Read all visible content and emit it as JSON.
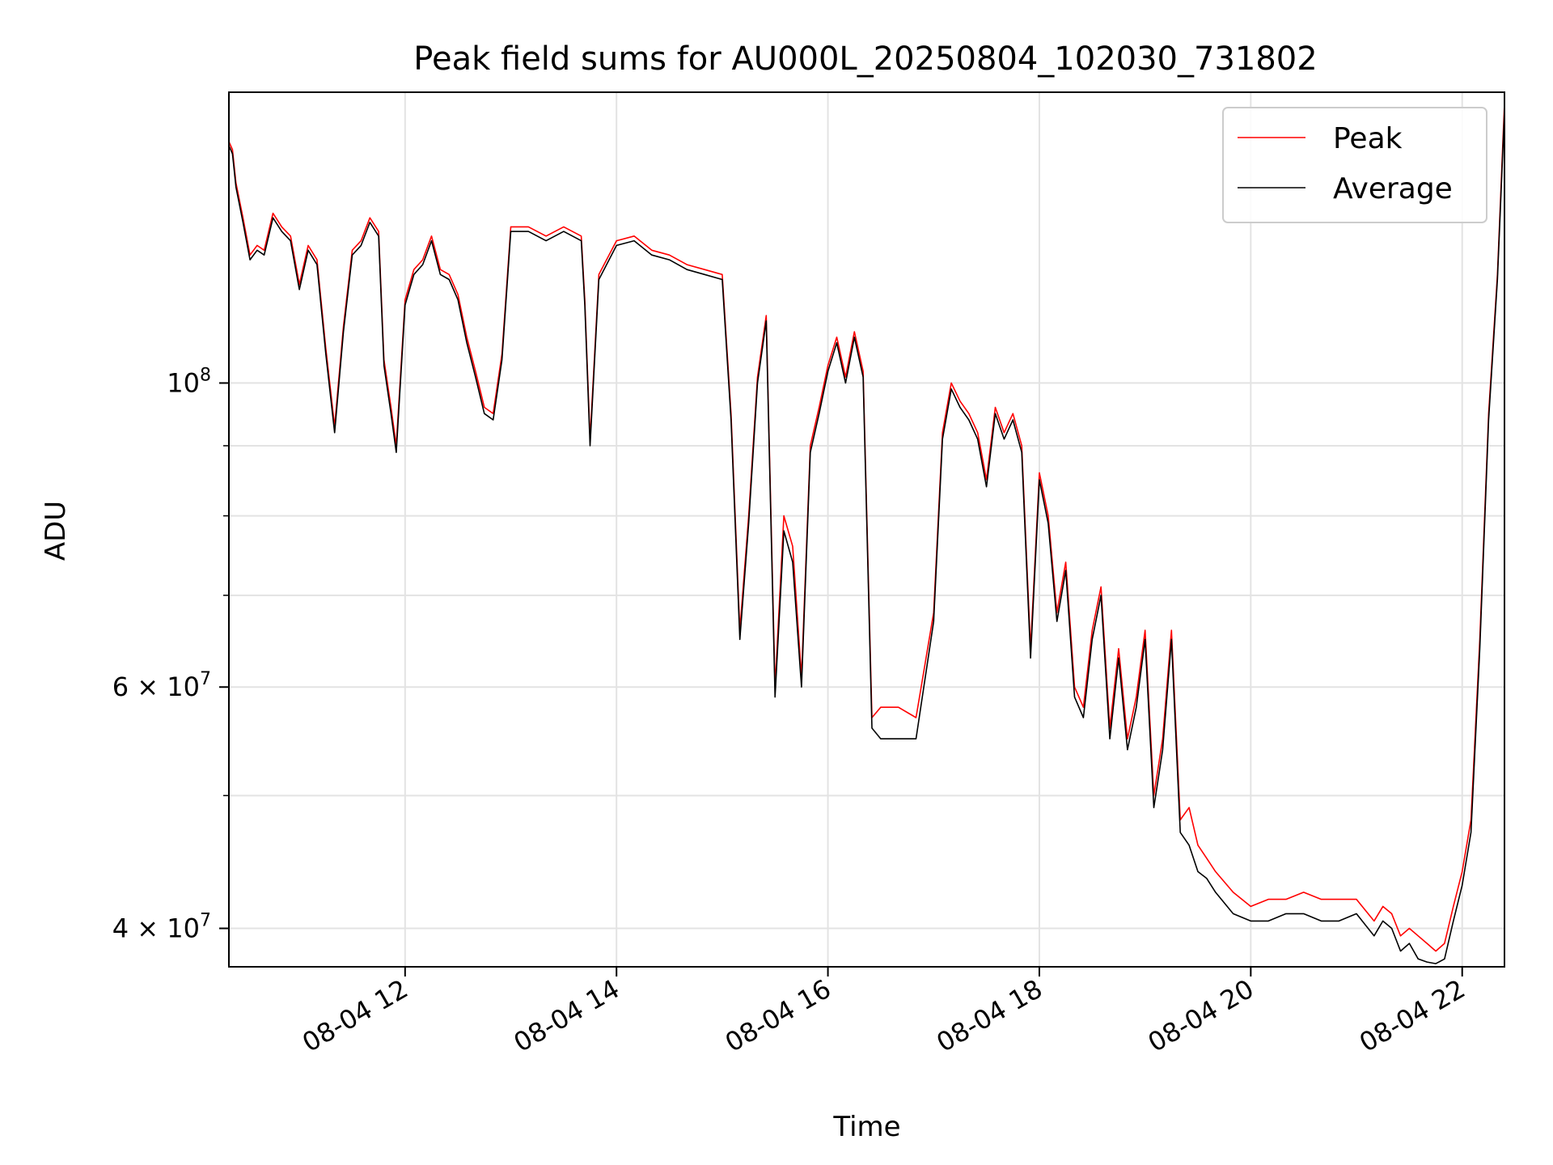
{
  "chart_data": {
    "type": "line",
    "title": "Peak field sums for AU000L_20250804_102030_731802",
    "xlabel": "Time",
    "ylabel": "ADU",
    "y_scale": "log",
    "ylim": [
      37500000,
      163000000
    ],
    "xlim": [
      "2025-08-04 10:20",
      "2025-08-04 22:24"
    ],
    "grid": true,
    "legend": "top-right",
    "x_ticks": [
      {
        "value": "2025-08-04 12:00",
        "label": "08-04 12"
      },
      {
        "value": "2025-08-04 14:00",
        "label": "08-04 14"
      },
      {
        "value": "2025-08-04 16:00",
        "label": "08-04 16"
      },
      {
        "value": "2025-08-04 18:00",
        "label": "08-04 18"
      },
      {
        "value": "2025-08-04 20:00",
        "label": "08-04 20"
      },
      {
        "value": "2025-08-04 22:00",
        "label": "08-04 22"
      }
    ],
    "y_ticks": [
      {
        "value": 100000000,
        "label_base": "10",
        "label_exp": "8",
        "mult": ""
      },
      {
        "value": 60000000,
        "label_base": "10",
        "label_exp": "7",
        "mult": "6 × "
      },
      {
        "value": 40000000,
        "label_base": "10",
        "label_exp": "7",
        "mult": "4 × "
      }
    ],
    "y_minor_gridlines": [
      50000000,
      70000000,
      80000000,
      90000000
    ],
    "series": [
      {
        "name": "Peak",
        "color": "#ff0000",
        "x": [
          "2025-08-04 10:20",
          "2025-08-04 10:22",
          "2025-08-04 10:24",
          "2025-08-04 10:28",
          "2025-08-04 10:32",
          "2025-08-04 10:36",
          "2025-08-04 10:40",
          "2025-08-04 10:45",
          "2025-08-04 10:50",
          "2025-08-04 10:55",
          "2025-08-04 11:00",
          "2025-08-04 11:05",
          "2025-08-04 11:10",
          "2025-08-04 11:15",
          "2025-08-04 11:20",
          "2025-08-04 11:25",
          "2025-08-04 11:30",
          "2025-08-04 11:35",
          "2025-08-04 11:40",
          "2025-08-04 11:45",
          "2025-08-04 11:48",
          "2025-08-04 11:52",
          "2025-08-04 11:55",
          "2025-08-04 12:00",
          "2025-08-04 12:05",
          "2025-08-04 12:10",
          "2025-08-04 12:15",
          "2025-08-04 12:20",
          "2025-08-04 12:25",
          "2025-08-04 12:30",
          "2025-08-04 12:35",
          "2025-08-04 12:40",
          "2025-08-04 12:45",
          "2025-08-04 12:50",
          "2025-08-04 12:55",
          "2025-08-04 13:00",
          "2025-08-04 13:10",
          "2025-08-04 13:20",
          "2025-08-04 13:30",
          "2025-08-04 13:40",
          "2025-08-04 13:42",
          "2025-08-04 13:45",
          "2025-08-04 13:50",
          "2025-08-04 14:00",
          "2025-08-04 14:10",
          "2025-08-04 14:20",
          "2025-08-04 14:30",
          "2025-08-04 14:40",
          "2025-08-04 14:50",
          "2025-08-04 15:00",
          "2025-08-04 15:05",
          "2025-08-04 15:10",
          "2025-08-04 15:15",
          "2025-08-04 15:20",
          "2025-08-04 15:25",
          "2025-08-04 15:30",
          "2025-08-04 15:35",
          "2025-08-04 15:40",
          "2025-08-04 15:45",
          "2025-08-04 15:50",
          "2025-08-04 15:55",
          "2025-08-04 16:00",
          "2025-08-04 16:05",
          "2025-08-04 16:10",
          "2025-08-04 16:15",
          "2025-08-04 16:20",
          "2025-08-04 16:25",
          "2025-08-04 16:30",
          "2025-08-04 16:40",
          "2025-08-04 16:50",
          "2025-08-04 17:00",
          "2025-08-04 17:05",
          "2025-08-04 17:10",
          "2025-08-04 17:15",
          "2025-08-04 17:20",
          "2025-08-04 17:25",
          "2025-08-04 17:30",
          "2025-08-04 17:35",
          "2025-08-04 17:40",
          "2025-08-04 17:45",
          "2025-08-04 17:50",
          "2025-08-04 17:55",
          "2025-08-04 18:00",
          "2025-08-04 18:05",
          "2025-08-04 18:10",
          "2025-08-04 18:15",
          "2025-08-04 18:20",
          "2025-08-04 18:25",
          "2025-08-04 18:30",
          "2025-08-04 18:35",
          "2025-08-04 18:40",
          "2025-08-04 18:45",
          "2025-08-04 18:50",
          "2025-08-04 18:55",
          "2025-08-04 19:00",
          "2025-08-04 19:05",
          "2025-08-04 19:10",
          "2025-08-04 19:15",
          "2025-08-04 19:20",
          "2025-08-04 19:25",
          "2025-08-04 19:30",
          "2025-08-04 19:35",
          "2025-08-04 19:40",
          "2025-08-04 19:50",
          "2025-08-04 20:00",
          "2025-08-04 20:10",
          "2025-08-04 20:20",
          "2025-08-04 20:30",
          "2025-08-04 20:40",
          "2025-08-04 20:50",
          "2025-08-04 21:00",
          "2025-08-04 21:10",
          "2025-08-04 21:15",
          "2025-08-04 21:20",
          "2025-08-04 21:25",
          "2025-08-04 21:30",
          "2025-08-04 21:35",
          "2025-08-04 21:40",
          "2025-08-04 21:45",
          "2025-08-04 21:50",
          "2025-08-04 21:55",
          "2025-08-04 22:00",
          "2025-08-04 22:05",
          "2025-08-04 22:10",
          "2025-08-04 22:15",
          "2025-08-04 22:20",
          "2025-08-04 22:24"
        ],
        "values": [
          150000000,
          148000000,
          140000000,
          132000000,
          124000000,
          126000000,
          125000000,
          133000000,
          130000000,
          128000000,
          118000000,
          126000000,
          123000000,
          106000000,
          93000000,
          110000000,
          125000000,
          127000000,
          132000000,
          129000000,
          104000000,
          96000000,
          90000000,
          115000000,
          121000000,
          123000000,
          128000000,
          121000000,
          120000000,
          116000000,
          108000000,
          102000000,
          96000000,
          95000000,
          105000000,
          130000000,
          130000000,
          128000000,
          130000000,
          128000000,
          115000000,
          91000000,
          120000000,
          127000000,
          128000000,
          125000000,
          124000000,
          122000000,
          121000000,
          120000000,
          95000000,
          66000000,
          80000000,
          101000000,
          112000000,
          60000000,
          80000000,
          76000000,
          61000000,
          90000000,
          96000000,
          103000000,
          108000000,
          101000000,
          109000000,
          102000000,
          57000000,
          58000000,
          58000000,
          57000000,
          68000000,
          92000000,
          100000000,
          97000000,
          95000000,
          92000000,
          85000000,
          96000000,
          92000000,
          95000000,
          90000000,
          64000000,
          86000000,
          80000000,
          68000000,
          74000000,
          60000000,
          58000000,
          66000000,
          71000000,
          56000000,
          64000000,
          55000000,
          59000000,
          66000000,
          50000000,
          55000000,
          66000000,
          48000000,
          49000000,
          46000000,
          45000000,
          44000000,
          42500000,
          41500000,
          42000000,
          42000000,
          42500000,
          42000000,
          42000000,
          42000000,
          40500000,
          41500000,
          41000000,
          39500000,
          40000000,
          39500000,
          39000000,
          38500000,
          39000000,
          41500000,
          44000000,
          48000000,
          65000000,
          95000000,
          120000000,
          160000000
        ]
      },
      {
        "name": "Average",
        "color": "#000000",
        "x": [
          "2025-08-04 10:20",
          "2025-08-04 10:22",
          "2025-08-04 10:24",
          "2025-08-04 10:28",
          "2025-08-04 10:32",
          "2025-08-04 10:36",
          "2025-08-04 10:40",
          "2025-08-04 10:45",
          "2025-08-04 10:50",
          "2025-08-04 10:55",
          "2025-08-04 11:00",
          "2025-08-04 11:05",
          "2025-08-04 11:10",
          "2025-08-04 11:15",
          "2025-08-04 11:20",
          "2025-08-04 11:25",
          "2025-08-04 11:30",
          "2025-08-04 11:35",
          "2025-08-04 11:40",
          "2025-08-04 11:45",
          "2025-08-04 11:48",
          "2025-08-04 11:52",
          "2025-08-04 11:55",
          "2025-08-04 12:00",
          "2025-08-04 12:05",
          "2025-08-04 12:10",
          "2025-08-04 12:15",
          "2025-08-04 12:20",
          "2025-08-04 12:25",
          "2025-08-04 12:30",
          "2025-08-04 12:35",
          "2025-08-04 12:40",
          "2025-08-04 12:45",
          "2025-08-04 12:50",
          "2025-08-04 12:55",
          "2025-08-04 13:00",
          "2025-08-04 13:10",
          "2025-08-04 13:20",
          "2025-08-04 13:30",
          "2025-08-04 13:40",
          "2025-08-04 13:42",
          "2025-08-04 13:45",
          "2025-08-04 13:50",
          "2025-08-04 14:00",
          "2025-08-04 14:10",
          "2025-08-04 14:20",
          "2025-08-04 14:30",
          "2025-08-04 14:40",
          "2025-08-04 14:50",
          "2025-08-04 15:00",
          "2025-08-04 15:05",
          "2025-08-04 15:10",
          "2025-08-04 15:15",
          "2025-08-04 15:20",
          "2025-08-04 15:25",
          "2025-08-04 15:30",
          "2025-08-04 15:35",
          "2025-08-04 15:40",
          "2025-08-04 15:45",
          "2025-08-04 15:50",
          "2025-08-04 15:55",
          "2025-08-04 16:00",
          "2025-08-04 16:05",
          "2025-08-04 16:10",
          "2025-08-04 16:15",
          "2025-08-04 16:20",
          "2025-08-04 16:25",
          "2025-08-04 16:30",
          "2025-08-04 16:40",
          "2025-08-04 16:50",
          "2025-08-04 17:00",
          "2025-08-04 17:05",
          "2025-08-04 17:10",
          "2025-08-04 17:15",
          "2025-08-04 17:20",
          "2025-08-04 17:25",
          "2025-08-04 17:30",
          "2025-08-04 17:35",
          "2025-08-04 17:40",
          "2025-08-04 17:45",
          "2025-08-04 17:50",
          "2025-08-04 17:55",
          "2025-08-04 18:00",
          "2025-08-04 18:05",
          "2025-08-04 18:10",
          "2025-08-04 18:15",
          "2025-08-04 18:20",
          "2025-08-04 18:25",
          "2025-08-04 18:30",
          "2025-08-04 18:35",
          "2025-08-04 18:40",
          "2025-08-04 18:45",
          "2025-08-04 18:50",
          "2025-08-04 18:55",
          "2025-08-04 19:00",
          "2025-08-04 19:05",
          "2025-08-04 19:10",
          "2025-08-04 19:15",
          "2025-08-04 19:20",
          "2025-08-04 19:25",
          "2025-08-04 19:30",
          "2025-08-04 19:35",
          "2025-08-04 19:40",
          "2025-08-04 19:50",
          "2025-08-04 20:00",
          "2025-08-04 20:10",
          "2025-08-04 20:20",
          "2025-08-04 20:30",
          "2025-08-04 20:40",
          "2025-08-04 20:50",
          "2025-08-04 21:00",
          "2025-08-04 21:10",
          "2025-08-04 21:15",
          "2025-08-04 21:20",
          "2025-08-04 21:25",
          "2025-08-04 21:30",
          "2025-08-04 21:35",
          "2025-08-04 21:40",
          "2025-08-04 21:45",
          "2025-08-04 21:50",
          "2025-08-04 21:55",
          "2025-08-04 22:00",
          "2025-08-04 22:05",
          "2025-08-04 22:10",
          "2025-08-04 22:15",
          "2025-08-04 22:20",
          "2025-08-04 22:24"
        ],
        "values": [
          149000000,
          147000000,
          139000000,
          131000000,
          123000000,
          125000000,
          124000000,
          132000000,
          129000000,
          127000000,
          117000000,
          125000000,
          122000000,
          105000000,
          92000000,
          109000000,
          124000000,
          126000000,
          131000000,
          128000000,
          103000000,
          95000000,
          89000000,
          114000000,
          120000000,
          122000000,
          127000000,
          120000000,
          119000000,
          115000000,
          107000000,
          101000000,
          95000000,
          94000000,
          104000000,
          129000000,
          129000000,
          127000000,
          129000000,
          127000000,
          114000000,
          90000000,
          119000000,
          126000000,
          127000000,
          124000000,
          123000000,
          121000000,
          120000000,
          119000000,
          94000000,
          65000000,
          79000000,
          100000000,
          111000000,
          59000000,
          78000000,
          74000000,
          60000000,
          89000000,
          95000000,
          102000000,
          107000000,
          100000000,
          108000000,
          101000000,
          56000000,
          55000000,
          55000000,
          55000000,
          67000000,
          91000000,
          99000000,
          96000000,
          94000000,
          91000000,
          84000000,
          95000000,
          91000000,
          94000000,
          89000000,
          63000000,
          85000000,
          79000000,
          67000000,
          73000000,
          59000000,
          57000000,
          65000000,
          70000000,
          55000000,
          63000000,
          54000000,
          58000000,
          65000000,
          49000000,
          54000000,
          65000000,
          47000000,
          46000000,
          44000000,
          43500000,
          42500000,
          41000000,
          40500000,
          40500000,
          41000000,
          41000000,
          40500000,
          40500000,
          41000000,
          39500000,
          40500000,
          40000000,
          38500000,
          39000000,
          38000000,
          37800000,
          37700000,
          38000000,
          40500000,
          43000000,
          47000000,
          64000000,
          94000000,
          119000000,
          158000000
        ]
      }
    ]
  }
}
